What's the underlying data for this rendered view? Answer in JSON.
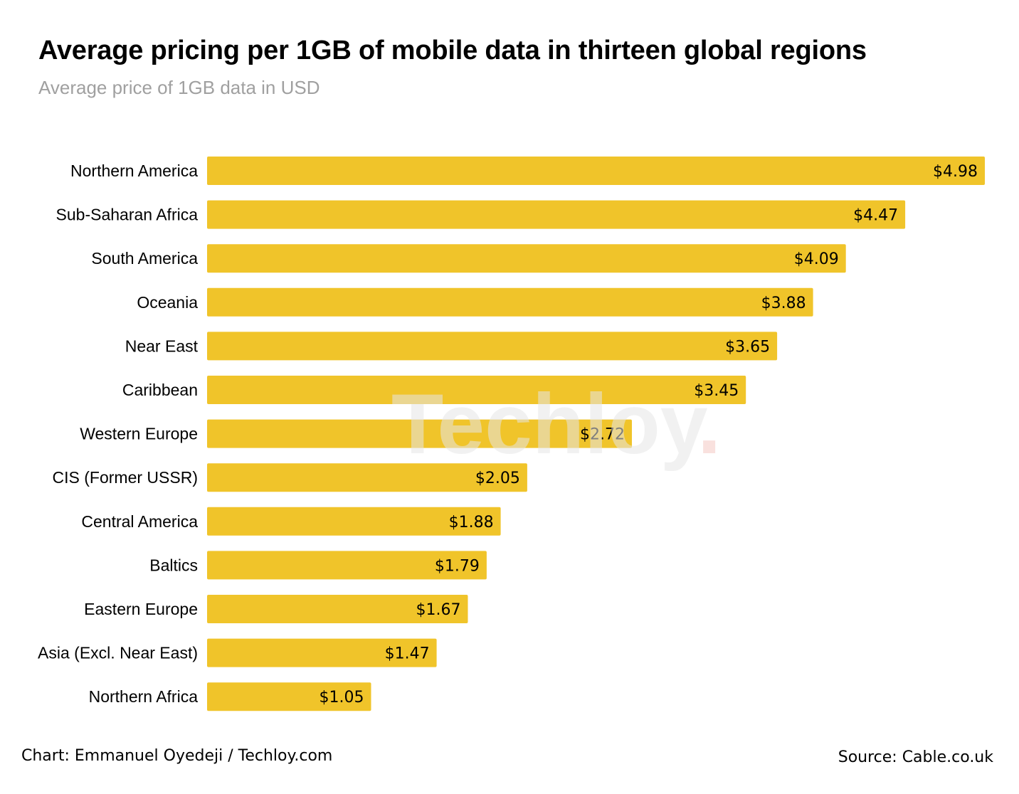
{
  "chart_data": {
    "type": "bar",
    "orientation": "horizontal",
    "title": "Average pricing per 1GB of mobile data in thirteen global regions",
    "subtitle": "Average price of 1GB data in USD",
    "categories": [
      "Northern America",
      "Sub-Saharan Africa",
      "South America",
      "Oceania",
      "Near East",
      "Caribbean",
      "Western Europe",
      "CIS (Former USSR)",
      "Central America",
      "Baltics",
      "Eastern Europe",
      "Asia (Excl. Near East)",
      "Northern Africa"
    ],
    "values": [
      4.98,
      4.47,
      4.09,
      3.88,
      3.65,
      3.45,
      2.72,
      2.05,
      1.88,
      1.79,
      1.67,
      1.47,
      1.05
    ],
    "value_labels": [
      "$4.98",
      "$4.47",
      "$4.09",
      "$3.88",
      "$3.65",
      "$3.45",
      "$2.72",
      "$2.05",
      "$1.88",
      "$1.79",
      "$1.67",
      "$1.47",
      "$1.05"
    ],
    "xlabel": "",
    "ylabel": "",
    "xlim": [
      0,
      4.98
    ],
    "grid": false,
    "legend": "none",
    "bar_color": "#f0c42a"
  },
  "watermark": {
    "text": "Techloy",
    "dot": ".",
    "color": "#e6e6e6",
    "dot_color": "#f7d4d0"
  },
  "footer": {
    "credit": "Chart: Emmanuel Oyedeji / Techloy.com",
    "source": "Source: Cable.co.uk"
  }
}
